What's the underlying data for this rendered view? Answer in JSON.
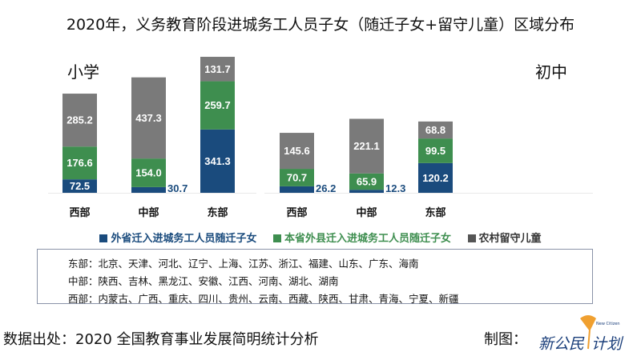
{
  "title": "2020年，义务教育阶段进城务工人员子女（随迁子女+留守儿童）区域分布",
  "chart_data": [
    {
      "type": "bar",
      "stacked": true,
      "title": "小学",
      "categories": [
        "西部",
        "中部",
        "东部"
      ],
      "series": [
        {
          "name": "外省迁入进城务工人员随迁子女",
          "color": "#1a4b7d",
          "values": [
            72.5,
            30.7,
            341.3
          ]
        },
        {
          "name": "本省外县迁入进城务工人员随迁子女",
          "color": "#3e8e4f",
          "values": [
            176.6,
            154.0,
            259.7
          ]
        },
        {
          "name": "农村留守儿童",
          "color": "#7a7a7a",
          "values": [
            285.2,
            437.3,
            131.7
          ]
        }
      ]
    },
    {
      "type": "bar",
      "stacked": true,
      "title": "初中",
      "categories": [
        "西部",
        "中部",
        "东部"
      ],
      "series": [
        {
          "name": "外省迁入进城务工人员随迁子女",
          "color": "#1a4b7d",
          "values": [
            26.2,
            12.3,
            120.2
          ]
        },
        {
          "name": "本省外县迁入进城务工人员随迁子女",
          "color": "#3e8e4f",
          "values": [
            70.7,
            65.9,
            99.5
          ]
        },
        {
          "name": "农村留守儿童",
          "color": "#7a7a7a",
          "values": [
            145.6,
            221.1,
            68.8
          ]
        }
      ]
    }
  ],
  "legend": [
    "外省迁入进城务工人员随迁子女",
    "本省外县迁入进城务工人员随迁子女",
    "农村留守儿童"
  ],
  "regions": [
    "东部：北京、天津、河北、辽宁、上海、江苏、浙江、福建、山东、广东、海南",
    "中部：陕西、吉林、黑龙江、安徽、江西、河南、湖北、湖南",
    "西部：内蒙古、广西、重庆、四川、贵州、云南、西藏、陕西、甘肃、青海、宁夏、新疆"
  ],
  "source": "数据出处：2020 全国教育事业发展简明统计分析",
  "credit": "制图：",
  "logo_text": "新公民计划"
}
